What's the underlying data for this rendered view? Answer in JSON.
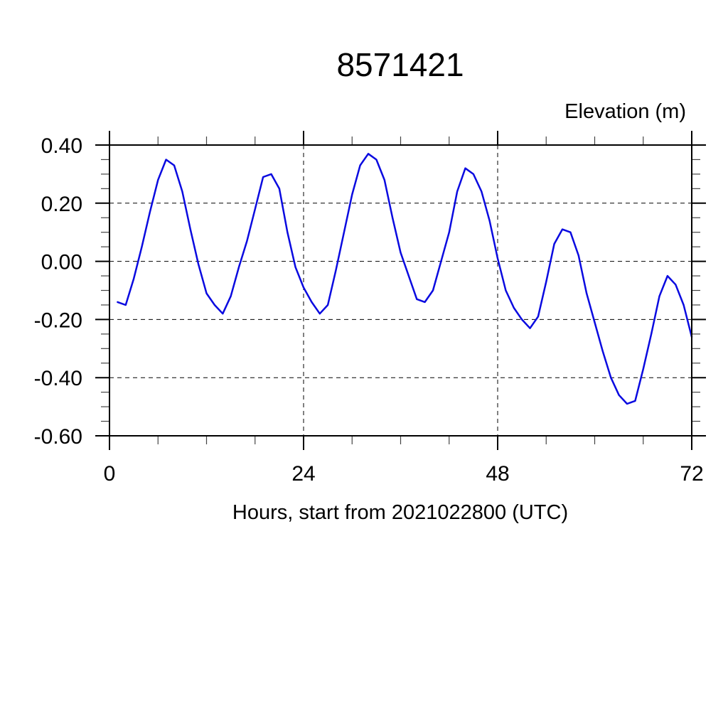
{
  "chart_data": {
    "type": "line",
    "title": "8571421",
    "ylabel": "Elevation (m)",
    "xlabel": "Hours, start from 2021022800 (UTC)",
    "xlim": [
      0,
      72
    ],
    "ylim": [
      -0.6,
      0.4
    ],
    "x_major_step": 24,
    "x_minor_step": 6,
    "y_major_step": 0.2,
    "y_minor_step": 0.05,
    "x_tick_labels": [
      "0",
      "24",
      "48",
      "72"
    ],
    "y_tick_labels": [
      "0.40",
      "0.20",
      "0.00",
      "-0.20",
      "-0.40",
      "-0.60"
    ],
    "grid": "dashed",
    "legend": "none",
    "line_color": "#0a0ae0",
    "series_name": "elevation",
    "hours": [
      1,
      2,
      3,
      4,
      5,
      6,
      7,
      8,
      9,
      10,
      11,
      12,
      13,
      14,
      15,
      16,
      17,
      18,
      19,
      20,
      21,
      22,
      23,
      24,
      25,
      26,
      27,
      28,
      29,
      30,
      31,
      32,
      33,
      34,
      35,
      36,
      37,
      38,
      39,
      40,
      41,
      42,
      43,
      44,
      45,
      46,
      47,
      48,
      49,
      50,
      51,
      52,
      53,
      54,
      55,
      56,
      57,
      58,
      59,
      60,
      61,
      62,
      63,
      64,
      65,
      66,
      67,
      68,
      69,
      70,
      71,
      72
    ],
    "elevation": [
      -0.14,
      -0.15,
      -0.06,
      0.05,
      0.17,
      0.28,
      0.35,
      0.33,
      0.24,
      0.11,
      -0.01,
      -0.11,
      -0.15,
      -0.18,
      -0.12,
      -0.02,
      0.07,
      0.18,
      0.29,
      0.3,
      0.25,
      0.1,
      -0.02,
      -0.09,
      -0.14,
      -0.18,
      -0.15,
      -0.03,
      0.1,
      0.23,
      0.33,
      0.37,
      0.35,
      0.28,
      0.15,
      0.03,
      -0.05,
      -0.13,
      -0.14,
      -0.1,
      0.0,
      0.1,
      0.24,
      0.32,
      0.3,
      0.24,
      0.14,
      0.01,
      -0.1,
      -0.16,
      -0.2,
      -0.23,
      -0.19,
      -0.07,
      0.06,
      0.11,
      0.1,
      0.02,
      -0.11,
      -0.21,
      -0.31,
      -0.4,
      -0.46,
      -0.49,
      -0.48,
      -0.37,
      -0.25,
      -0.12,
      -0.05,
      -0.08,
      -0.15,
      -0.26
    ]
  }
}
